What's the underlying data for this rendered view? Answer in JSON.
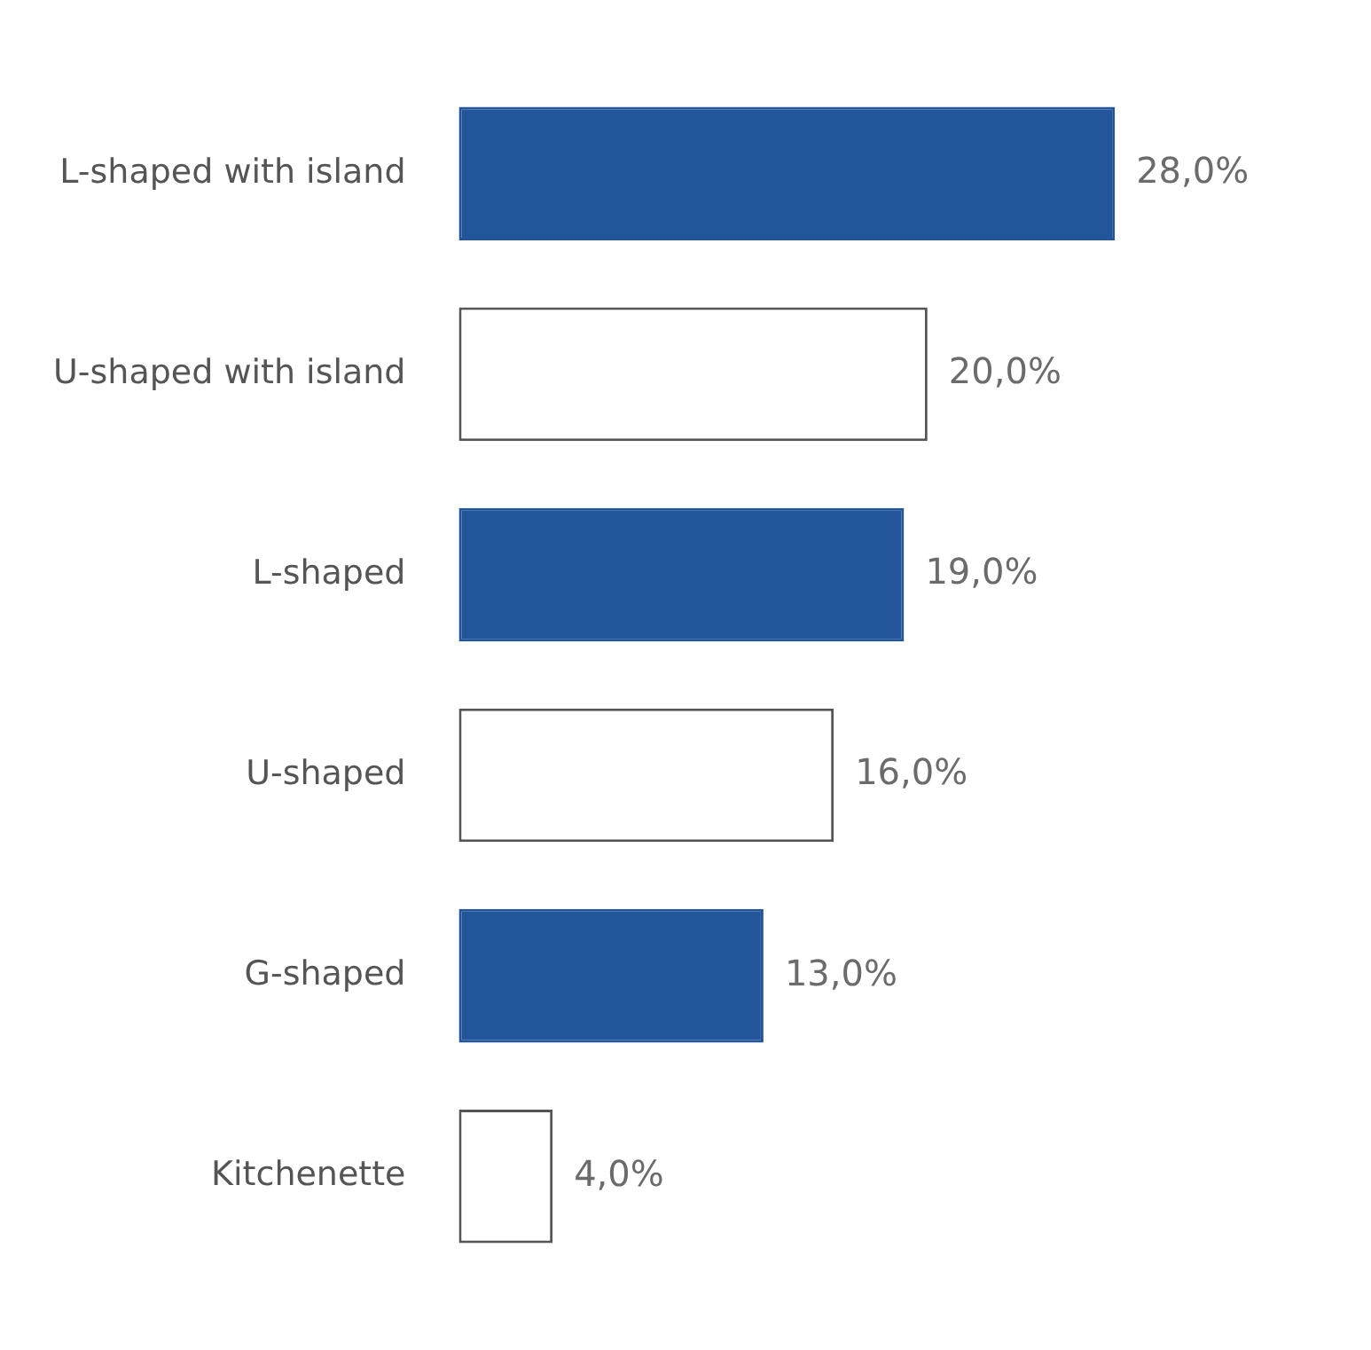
{
  "chart_data": {
    "type": "bar",
    "orientation": "horizontal",
    "categories": [
      "L-shaped with island",
      "U-shaped with island",
      "L-shaped",
      "U-shaped",
      "G-shaped",
      "Kitchenette"
    ],
    "values": [
      28,
      20,
      19,
      16,
      13,
      4
    ],
    "value_labels": [
      "28,0%",
      "20,0%",
      "19,0%",
      "16,0%",
      "13,0%",
      "4,0%"
    ],
    "colors": [
      "#23559a",
      "#ffffff",
      "#23559a",
      "#ffffff",
      "#23559a",
      "#ffffff"
    ],
    "legend": false
  }
}
